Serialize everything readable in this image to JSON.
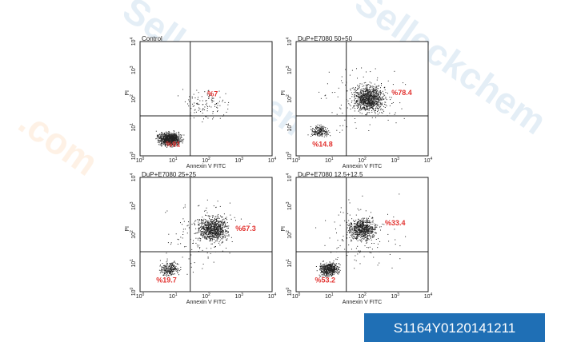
{
  "watermark": {
    "brand": "Selleckchem",
    "suffix": ".com"
  },
  "x_axis_label": "Annexin V FITC",
  "y_axis_label": "PI",
  "ticks": [
    {
      "base": "10",
      "exp": "0"
    },
    {
      "base": "10",
      "exp": "1"
    },
    {
      "base": "10",
      "exp": "2"
    },
    {
      "base": "10",
      "exp": "3"
    },
    {
      "base": "10",
      "exp": "4"
    }
  ],
  "panels": [
    {
      "title": "Control",
      "upper_right": "%7",
      "lower_left": "%91"
    },
    {
      "title": "DuP+E7080 50+50",
      "upper_right": "%78.4",
      "lower_left": "%14.8"
    },
    {
      "title": "DuP+E7080 25+25",
      "upper_right": "%67.3",
      "lower_left": "%19.7"
    },
    {
      "title": "DuP+E7080 12.5+12.5",
      "upper_right": "%33.4",
      "lower_left": "%53.2"
    }
  ],
  "catalog_id": "S1164Y0120141211"
}
